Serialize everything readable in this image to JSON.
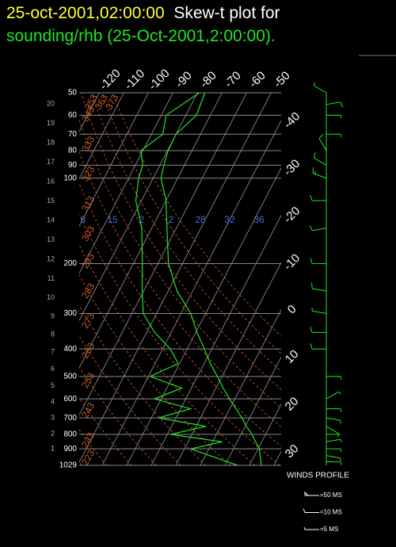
{
  "chart_data": {
    "type": "skewt",
    "title_date": "25-oct-2001,02:00:00",
    "title": "Skew-t plot for",
    "subtitle": "sounding/rhb (25-Oct-2001,2:00:00).",
    "ylim": [
      1029,
      50
    ],
    "log_y": true,
    "yticks": [
      50,
      60,
      70,
      80,
      90,
      100,
      200,
      300,
      400,
      500,
      600,
      700,
      800,
      900,
      1029
    ],
    "temperature_ticks": [
      -120,
      -110,
      -100,
      -90,
      -80,
      -70,
      -60,
      -50,
      -40,
      -30,
      -20,
      -10,
      0,
      10,
      20,
      30
    ],
    "height_ticks": [
      1,
      2,
      3,
      4,
      5,
      6,
      7,
      8,
      9,
      10,
      11,
      12,
      13,
      14,
      15,
      16,
      17,
      18,
      19,
      20
    ],
    "dry_adiabats": [
      373,
      363,
      353,
      343,
      333,
      323,
      313,
      303,
      293,
      283,
      273,
      263,
      253,
      243,
      233,
      223
    ],
    "mixing_ratio_labels": [
      "8",
      "15",
      "2",
      "2",
      "28",
      "32",
      "36"
    ],
    "pressure": [
      1029,
      900,
      850,
      800,
      750,
      700,
      650,
      600,
      550,
      500,
      450,
      400,
      350,
      300,
      250,
      200,
      150,
      120,
      100,
      90,
      80,
      70,
      60,
      50
    ],
    "series": [
      {
        "color": "#22e622",
        "values": [
          24.8,
          20.5,
          17.5,
          14.4,
          10.5,
          6.9,
          2.5,
          -2.2,
          -7,
          -11.9,
          -17.5,
          -23,
          -29.5,
          -36,
          -46.4,
          -55.7,
          -63.8,
          -70,
          -76.8,
          -78.4,
          -79.7,
          -80,
          -75.7,
          -77
        ]
      },
      {
        "color": "#22e622",
        "values": [
          15.2,
          -7.5,
          3.9,
          -18.8,
          -6,
          -27,
          -16,
          -32.8,
          -23.9,
          -39.3,
          -30.6,
          -36.9,
          -46.7,
          -55.4,
          -60.6,
          -66.3,
          -74.1,
          -82.3,
          -85.9,
          -87,
          -90.8,
          -85.4,
          -88,
          -79.2
        ]
      }
    ],
    "winds": {
      "title": "WINDS PROFILE",
      "color": "#22e622",
      "pressure": [
        1000,
        950,
        900,
        850,
        800,
        750,
        700,
        650,
        600,
        500,
        400,
        350,
        300,
        250,
        200,
        150,
        120,
        100,
        90,
        80,
        70,
        60,
        55,
        50
      ],
      "speed": [
        5,
        5,
        5,
        5,
        3,
        5,
        5,
        5,
        8,
        5,
        10,
        10,
        8,
        10,
        10,
        10,
        10,
        15,
        10,
        10,
        8,
        5,
        10,
        8
      ],
      "direction": [
        90,
        100,
        90,
        80,
        90,
        120,
        100,
        90,
        60,
        90,
        270,
        270,
        280,
        280,
        270,
        260,
        270,
        290,
        300,
        330,
        90,
        90,
        80,
        300
      ],
      "legend": [
        {
          "speed": 50,
          "label": "=50 MS"
        },
        {
          "speed": 10,
          "label": "=10 MS"
        },
        {
          "speed": 5,
          "label": "=5 MS"
        }
      ]
    }
  }
}
